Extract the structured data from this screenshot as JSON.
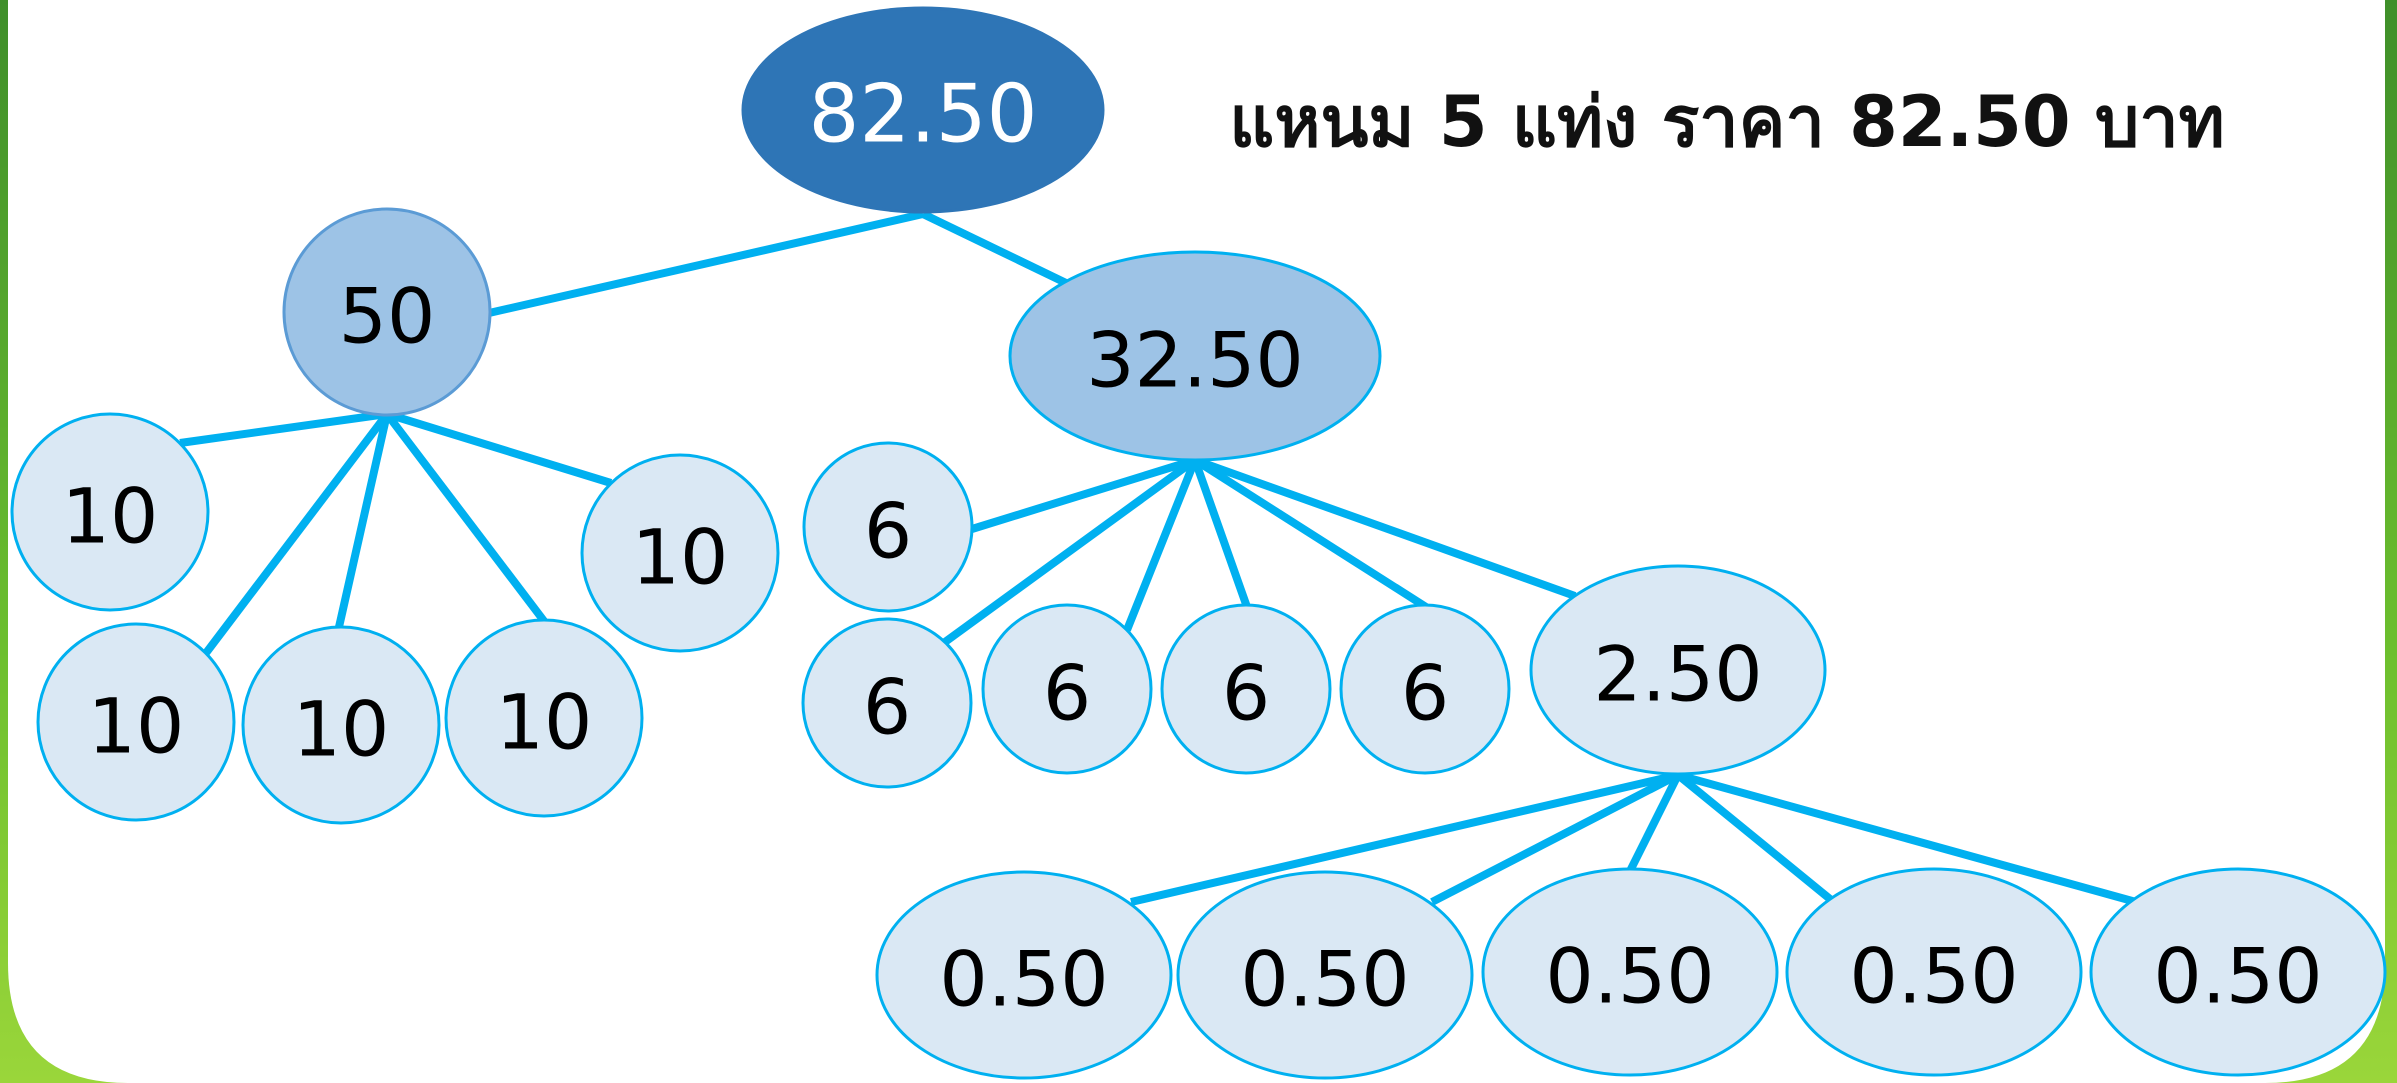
{
  "title": "แหนม 5 แท่ง ราคา 82.50 บาท",
  "nodes": [
    {
      "label": "82.50"
    },
    {
      "label": "50"
    },
    {
      "label": "32.50"
    },
    {
      "label": "10"
    },
    {
      "label": "10"
    },
    {
      "label": "10"
    },
    {
      "label": "10"
    },
    {
      "label": "10"
    },
    {
      "label": "6"
    },
    {
      "label": "6"
    },
    {
      "label": "6"
    },
    {
      "label": "6"
    },
    {
      "label": "6"
    },
    {
      "label": "2.50"
    },
    {
      "label": "0.50"
    },
    {
      "label": "0.50"
    },
    {
      "label": "0.50"
    },
    {
      "label": "0.50"
    },
    {
      "label": "0.50"
    }
  ]
}
